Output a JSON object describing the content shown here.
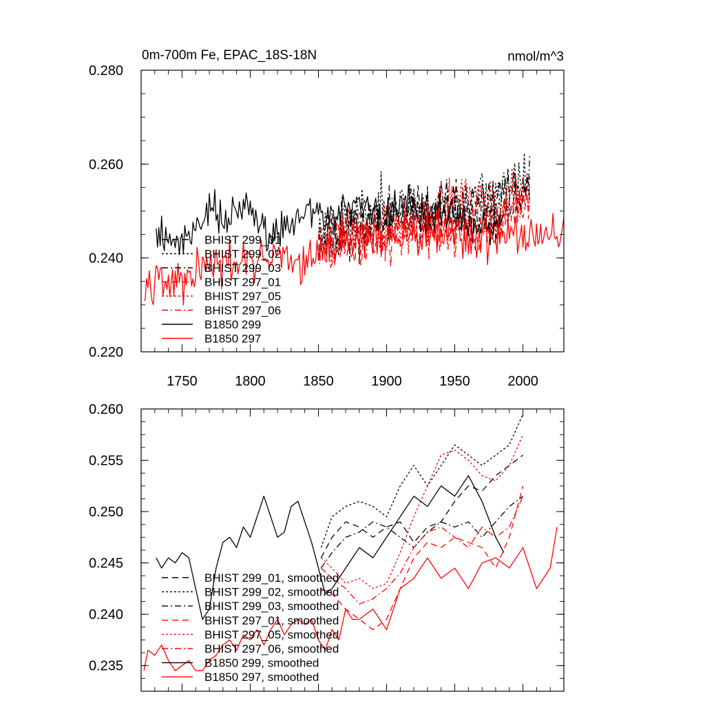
{
  "chart_data": [
    {
      "type": "line",
      "title": "0m-700m Fe, EPAC_18S-18N",
      "units": "nmol/m^3",
      "xlim": [
        1720,
        2030
      ],
      "ylim": [
        0.22,
        0.28
      ],
      "xticks": [
        1750,
        1800,
        1850,
        1900,
        1950,
        2000
      ],
      "xtick_labels": [
        "1750",
        "1800",
        "1850",
        "1900",
        "1950",
        "2000"
      ],
      "yticks": [
        0.22,
        0.24,
        0.26,
        0.28
      ],
      "ytick_labels": [
        "0.220",
        "0.240",
        "0.260",
        "0.280"
      ],
      "grid": false,
      "legend_position": "lower-left",
      "series": [
        {
          "name": "BHIST 299_01",
          "color": "#000000",
          "dash": "dashed",
          "x_start": 1850,
          "x_end": 2005,
          "base": [
            0.2445,
            0.247,
            0.2485,
            0.2495,
            0.2505,
            0.2515,
            0.254
          ],
          "noise": 0.0055,
          "seed": 11
        },
        {
          "name": "BHIST 299_02",
          "color": "#000000",
          "dash": "dotted",
          "x_start": 1850,
          "x_end": 2005,
          "base": [
            0.246,
            0.2485,
            0.251,
            0.2505,
            0.252,
            0.2535,
            0.256
          ],
          "noise": 0.0058,
          "seed": 23
        },
        {
          "name": "BHIST 299_03",
          "color": "#000000",
          "dash": "dashdot",
          "x_start": 1850,
          "x_end": 2005,
          "base": [
            0.2445,
            0.2465,
            0.2485,
            0.249,
            0.25,
            0.2505,
            0.2545
          ],
          "noise": 0.0055,
          "seed": 37
        },
        {
          "name": "BHIST 297_01",
          "color": "#ff0000",
          "dash": "dashed",
          "x_start": 1850,
          "x_end": 2005,
          "base": [
            0.2435,
            0.2435,
            0.2445,
            0.2465,
            0.2475,
            0.247,
            0.252
          ],
          "noise": 0.0055,
          "seed": 41
        },
        {
          "name": "BHIST 297_05",
          "color": "#ff0000",
          "dash": "dotted",
          "x_start": 1850,
          "x_end": 2005,
          "base": [
            0.2445,
            0.244,
            0.2455,
            0.249,
            0.2525,
            0.2525,
            0.2545
          ],
          "noise": 0.0058,
          "seed": 53
        },
        {
          "name": "BHIST 297_06",
          "color": "#ff0000",
          "dash": "dashdot",
          "x_start": 1850,
          "x_end": 2005,
          "base": [
            0.2435,
            0.244,
            0.245,
            0.2465,
            0.247,
            0.247,
            0.2515
          ],
          "noise": 0.0055,
          "seed": 67
        },
        {
          "name": "B1850 299",
          "color": "#000000",
          "dash": "solid",
          "x_start": 1731,
          "x_end": 1986,
          "base": [
            0.2455,
            0.245,
            0.2435,
            0.248,
            0.2505,
            0.2485,
            0.2495,
            0.251,
            0.245,
            0.2465,
            0.2485,
            0.2495,
            0.2495,
            0.249,
            0.2505,
            0.2515,
            0.248,
            0.249,
            0.251,
            0.25,
            0.249,
            0.2495,
            0.2475,
            0.2465,
            0.2465,
            0.2475
          ],
          "noise": 0.0042,
          "seed": 79
        },
        {
          "name": "B1850 297",
          "color": "#ff0000",
          "dash": "solid",
          "x_start": 1722,
          "x_end": 2030,
          "base": [
            0.2355,
            0.2365,
            0.2345,
            0.2345,
            0.2375,
            0.238,
            0.2385,
            0.239,
            0.2385,
            0.2395,
            0.24,
            0.2385,
            0.2405,
            0.2415,
            0.2435,
            0.244,
            0.245,
            0.2445,
            0.2425,
            0.245,
            0.2455,
            0.2445,
            0.2445,
            0.2435,
            0.2445,
            0.2445,
            0.2455,
            0.2445,
            0.2445,
            0.2445,
            0.2455
          ],
          "noise": 0.0045,
          "seed": 97
        }
      ]
    },
    {
      "type": "line",
      "title": "",
      "xlim": [
        1720,
        2030
      ],
      "ylim": [
        0.2325,
        0.26
      ],
      "xticks": [
        1750,
        1800,
        1850,
        1900,
        1950,
        2000
      ],
      "yticks": [
        0.235,
        0.24,
        0.245,
        0.25,
        0.255,
        0.26
      ],
      "ytick_labels": [
        "0.235",
        "0.240",
        "0.245",
        "0.250",
        "0.255",
        "0.260"
      ],
      "grid": false,
      "legend_position": "lower-left",
      "series": [
        {
          "name": "BHIST 299_01, smoothed",
          "color": "#000000",
          "dash": "dashed",
          "x": [
            1852,
            1860,
            1870,
            1880,
            1890,
            1900,
            1910,
            1920,
            1930,
            1940,
            1950,
            1960,
            1970,
            1980,
            1990,
            2000
          ],
          "y": [
            0.2455,
            0.2475,
            0.249,
            0.2485,
            0.2475,
            0.2485,
            0.249,
            0.247,
            0.2485,
            0.249,
            0.251,
            0.2525,
            0.252,
            0.2535,
            0.2545,
            0.2555
          ]
        },
        {
          "name": "BHIST 299_02, smoothed",
          "color": "#000000",
          "dash": "dotted",
          "x": [
            1852,
            1860,
            1870,
            1880,
            1890,
            1900,
            1910,
            1920,
            1930,
            1940,
            1950,
            1960,
            1970,
            1980,
            1990,
            2000
          ],
          "y": [
            0.2465,
            0.2495,
            0.2505,
            0.251,
            0.2505,
            0.2495,
            0.2525,
            0.2545,
            0.2525,
            0.2545,
            0.2565,
            0.2555,
            0.2545,
            0.2555,
            0.2565,
            0.2595
          ]
        },
        {
          "name": "BHIST 299_03, smoothed",
          "color": "#000000",
          "dash": "dashdot",
          "x": [
            1852,
            1860,
            1870,
            1880,
            1890,
            1900,
            1910,
            1920,
            1930,
            1940,
            1950,
            1960,
            1970,
            1980,
            1990,
            2000
          ],
          "y": [
            0.2445,
            0.246,
            0.2475,
            0.248,
            0.249,
            0.2485,
            0.2475,
            0.2465,
            0.248,
            0.249,
            0.2485,
            0.249,
            0.2475,
            0.249,
            0.2505,
            0.2515
          ]
        },
        {
          "name": "BHIST 297_01, smoothed",
          "color": "#ff0000",
          "dash": "dashed",
          "x": [
            1852,
            1860,
            1870,
            1880,
            1890,
            1900,
            1910,
            1920,
            1930,
            1940,
            1950,
            1960,
            1970,
            1980,
            1990,
            2000
          ],
          "y": [
            0.2425,
            0.242,
            0.2405,
            0.2395,
            0.2385,
            0.2395,
            0.2425,
            0.2455,
            0.247,
            0.2465,
            0.2475,
            0.247,
            0.2465,
            0.2445,
            0.2475,
            0.2525
          ]
        },
        {
          "name": "BHIST 297_05, smoothed",
          "color": "#ff0000",
          "dash": "dotted",
          "x": [
            1852,
            1860,
            1870,
            1880,
            1890,
            1900,
            1910,
            1920,
            1930,
            1940,
            1950,
            1960,
            1970,
            1980,
            1990,
            2000
          ],
          "y": [
            0.2455,
            0.2445,
            0.243,
            0.2435,
            0.2425,
            0.243,
            0.246,
            0.2495,
            0.2525,
            0.2555,
            0.256,
            0.255,
            0.2535,
            0.253,
            0.2545,
            0.2575
          ]
        },
        {
          "name": "BHIST 297_06, smoothed",
          "color": "#ff0000",
          "dash": "dashdot",
          "x": [
            1852,
            1860,
            1870,
            1880,
            1890,
            1900,
            1910,
            1920,
            1930,
            1940,
            1950,
            1960,
            1970,
            1980,
            1990,
            2000
          ],
          "y": [
            0.2445,
            0.2435,
            0.2425,
            0.241,
            0.2415,
            0.2425,
            0.244,
            0.2465,
            0.248,
            0.2485,
            0.2475,
            0.2465,
            0.2485,
            0.2475,
            0.2485,
            0.2515
          ]
        },
        {
          "name": "B1850 299, smoothed",
          "color": "#000000",
          "dash": "solid",
          "x": [
            1731,
            1735,
            1740,
            1745,
            1750,
            1755,
            1760,
            1765,
            1770,
            1775,
            1780,
            1785,
            1790,
            1795,
            1800,
            1805,
            1810,
            1815,
            1820,
            1825,
            1830,
            1835,
            1840,
            1845,
            1850,
            1855,
            1860,
            1870,
            1880,
            1890,
            1900,
            1910,
            1920,
            1930,
            1940,
            1950,
            1960,
            1970,
            1980,
            1986
          ],
          "y": [
            0.2455,
            0.2445,
            0.2455,
            0.245,
            0.246,
            0.2455,
            0.2425,
            0.2395,
            0.2405,
            0.2445,
            0.247,
            0.2475,
            0.2465,
            0.2485,
            0.2475,
            0.2495,
            0.2515,
            0.2495,
            0.2475,
            0.248,
            0.2505,
            0.251,
            0.249,
            0.247,
            0.2445,
            0.242,
            0.2425,
            0.2445,
            0.2465,
            0.2455,
            0.2475,
            0.2495,
            0.2515,
            0.2505,
            0.2525,
            0.2515,
            0.2535,
            0.251,
            0.2475,
            0.246
          ]
        },
        {
          "name": "B1850 297, smoothed",
          "color": "#ff0000",
          "dash": "solid",
          "x": [
            1722,
            1725,
            1730,
            1735,
            1740,
            1745,
            1750,
            1755,
            1760,
            1765,
            1770,
            1775,
            1780,
            1785,
            1790,
            1795,
            1800,
            1805,
            1810,
            1815,
            1820,
            1825,
            1830,
            1835,
            1840,
            1845,
            1850,
            1855,
            1860,
            1865,
            1870,
            1875,
            1880,
            1890,
            1900,
            1910,
            1920,
            1930,
            1940,
            1950,
            1960,
            1970,
            1980,
            1990,
            2000,
            2010,
            2020,
            2025
          ],
          "y": [
            0.2345,
            0.2365,
            0.236,
            0.237,
            0.2355,
            0.2345,
            0.235,
            0.2355,
            0.2345,
            0.2345,
            0.2355,
            0.236,
            0.237,
            0.2375,
            0.2365,
            0.238,
            0.2375,
            0.2385,
            0.237,
            0.2385,
            0.2395,
            0.238,
            0.239,
            0.2395,
            0.239,
            0.2395,
            0.2375,
            0.2365,
            0.2385,
            0.2375,
            0.2405,
            0.2395,
            0.2395,
            0.2405,
            0.2385,
            0.2425,
            0.2435,
            0.2455,
            0.2435,
            0.2445,
            0.2425,
            0.245,
            0.2455,
            0.2445,
            0.2465,
            0.2425,
            0.2445,
            0.2485
          ]
        }
      ]
    }
  ]
}
